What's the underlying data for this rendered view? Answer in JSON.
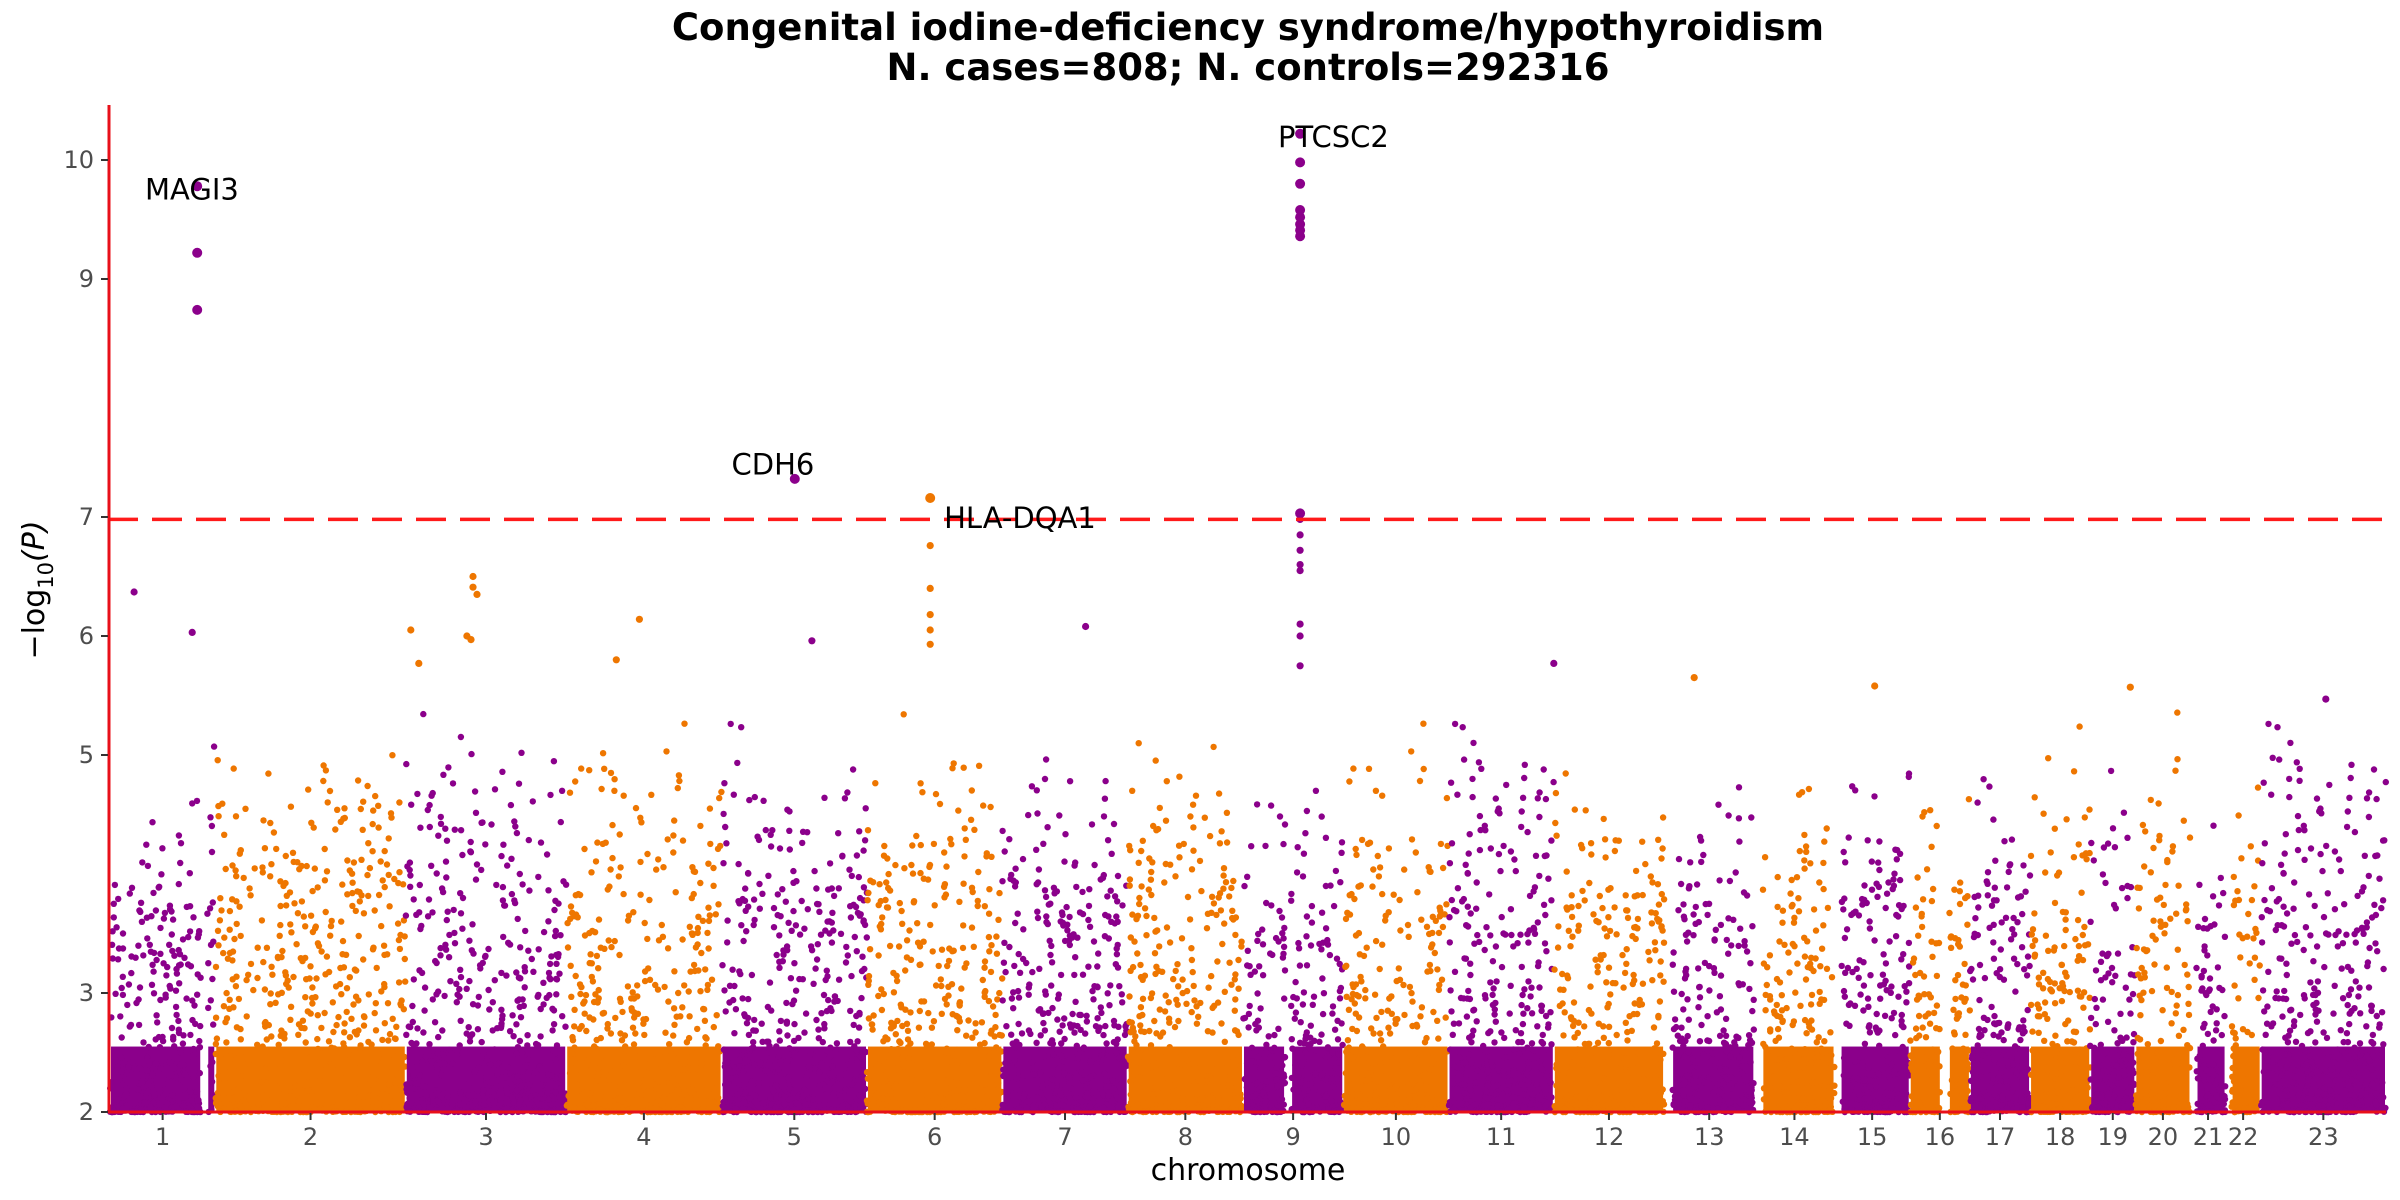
{
  "chart_data": {
    "type": "scatter",
    "title": "Congenital iodine-deficiency syndrome/hypothyroidism",
    "subtitle": "N. cases=808; N. controls=292316",
    "xlabel": "chromosome",
    "ylabel_prefix": "−log",
    "ylabel_sub": "10",
    "ylabel_suffix": "(P)",
    "ylim": [
      2,
      10.35
    ],
    "yticks": [
      "2",
      "3",
      "5",
      "6",
      "7",
      "9",
      "10"
    ],
    "grid": false,
    "threshold": 6.98,
    "threshold_color": "#ff1a1a",
    "axis_color": "#e8101a",
    "colors": [
      "#8b008b",
      "#ee7600"
    ],
    "chromosomes": [
      {
        "label": "1",
        "start": 0,
        "end": 1.05,
        "peak": 4.9,
        "gap": [
          0.91,
          0.97
        ]
      },
      {
        "label": "2",
        "start": 1.05,
        "end": 2.95,
        "peak": 5.3
      },
      {
        "label": "3",
        "start": 2.95,
        "end": 4.55,
        "peak": 5.3
      },
      {
        "label": "4",
        "start": 4.55,
        "end": 6.1,
        "peak": 5.2
      },
      {
        "label": "5",
        "start": 6.1,
        "end": 7.55,
        "peak": 5.3
      },
      {
        "label": "6",
        "start": 7.55,
        "end": 8.9,
        "peak": 5.3
      },
      {
        "label": "7",
        "start": 8.9,
        "end": 10.15,
        "peak": 5.2
      },
      {
        "label": "8",
        "start": 10.15,
        "end": 11.3,
        "peak": 5.4
      },
      {
        "label": "9",
        "start": 11.3,
        "end": 12.3,
        "peak": 5.0,
        "gap": [
          11.72,
          11.78
        ]
      },
      {
        "label": "10",
        "start": 12.3,
        "end": 13.35,
        "peak": 5.2
      },
      {
        "label": "11",
        "start": 13.35,
        "end": 14.4,
        "peak": 5.3
      },
      {
        "label": "12",
        "start": 14.4,
        "end": 15.5,
        "peak": 5.2
      },
      {
        "label": "13",
        "start": 15.5,
        "end": 16.4,
        "peak": 4.8,
        "gap": [
          15.5,
          15.58
        ]
      },
      {
        "label": "14",
        "start": 16.4,
        "end": 17.2,
        "peak": 5.1,
        "gap": [
          16.4,
          16.48
        ]
      },
      {
        "label": "15",
        "start": 17.2,
        "end": 17.95,
        "peak": 5.2,
        "gap": [
          17.2,
          17.26
        ]
      },
      {
        "label": "16",
        "start": 17.95,
        "end": 18.55,
        "peak": 4.9,
        "gap": [
          18.26,
          18.34
        ]
      },
      {
        "label": "17",
        "start": 18.55,
        "end": 19.15,
        "peak": 5.0
      },
      {
        "label": "18",
        "start": 19.15,
        "end": 19.75,
        "peak": 5.4
      },
      {
        "label": "19",
        "start": 19.75,
        "end": 20.2,
        "peak": 5.0
      },
      {
        "label": "20",
        "start": 20.2,
        "end": 20.75,
        "peak": 5.3
      },
      {
        "label": "21",
        "start": 20.75,
        "end": 21.1,
        "peak": 4.7,
        "gap": [
          20.75,
          20.81
        ]
      },
      {
        "label": "22",
        "start": 21.1,
        "end": 21.45,
        "peak": 5.0,
        "gap": [
          21.1,
          21.16
        ]
      },
      {
        "label": "23",
        "start": 21.45,
        "end": 22.7,
        "peak": 5.3
      }
    ],
    "hits": [
      {
        "x": 0.87,
        "y": 9.78,
        "chrom": 1
      },
      {
        "x": 0.87,
        "y": 9.22,
        "chrom": 1
      },
      {
        "x": 0.87,
        "y": 8.74,
        "chrom": 1
      },
      {
        "x": 0.82,
        "y": 6.03,
        "chrom": 1
      },
      {
        "x": 0.24,
        "y": 6.37,
        "chrom": 1
      },
      {
        "x": 6.83,
        "y": 7.32,
        "chrom": 5
      },
      {
        "x": 8.18,
        "y": 7.16,
        "chrom": 6
      },
      {
        "x": 8.18,
        "y": 6.76,
        "chrom": 6
      },
      {
        "x": 8.18,
        "y": 6.4,
        "chrom": 6
      },
      {
        "x": 8.18,
        "y": 6.18,
        "chrom": 6
      },
      {
        "x": 8.18,
        "y": 6.05,
        "chrom": 6
      },
      {
        "x": 8.18,
        "y": 5.93,
        "chrom": 6
      },
      {
        "x": 11.87,
        "y": 10.22,
        "chrom": 9
      },
      {
        "x": 11.87,
        "y": 9.98,
        "chrom": 9
      },
      {
        "x": 11.87,
        "y": 9.8,
        "chrom": 9
      },
      {
        "x": 11.87,
        "y": 9.58,
        "chrom": 9
      },
      {
        "x": 11.87,
        "y": 9.52,
        "chrom": 9
      },
      {
        "x": 11.87,
        "y": 9.46,
        "chrom": 9
      },
      {
        "x": 11.87,
        "y": 9.41,
        "chrom": 9
      },
      {
        "x": 11.87,
        "y": 9.36,
        "chrom": 9
      },
      {
        "x": 11.87,
        "y": 7.03,
        "chrom": 9
      },
      {
        "x": 11.87,
        "y": 6.98,
        "chrom": 9
      },
      {
        "x": 11.87,
        "y": 6.85,
        "chrom": 9
      },
      {
        "x": 11.87,
        "y": 6.72,
        "chrom": 9
      },
      {
        "x": 11.87,
        "y": 6.6,
        "chrom": 9
      },
      {
        "x": 11.87,
        "y": 6.55,
        "chrom": 9
      },
      {
        "x": 11.87,
        "y": 6.1,
        "chrom": 9
      },
      {
        "x": 11.87,
        "y": 6.0,
        "chrom": 9
      },
      {
        "x": 11.87,
        "y": 5.75,
        "chrom": 9
      },
      {
        "x": 3.62,
        "y": 6.5,
        "chrom": 2
      },
      {
        "x": 3.62,
        "y": 6.41,
        "chrom": 2
      },
      {
        "x": 3.66,
        "y": 6.35,
        "chrom": 2
      },
      {
        "x": 3.56,
        "y": 6.0,
        "chrom": 2
      },
      {
        "x": 3.6,
        "y": 5.97,
        "chrom": 2
      },
      {
        "x": 3.0,
        "y": 6.05,
        "chrom": 2
      },
      {
        "x": 3.08,
        "y": 5.77,
        "chrom": 2
      },
      {
        "x": 5.28,
        "y": 6.14,
        "chrom": 4
      },
      {
        "x": 5.05,
        "y": 5.8,
        "chrom": 4
      },
      {
        "x": 9.73,
        "y": 6.08,
        "chrom": 7
      },
      {
        "x": 7.0,
        "y": 5.96,
        "chrom": 5
      },
      {
        "x": 15.8,
        "y": 5.65,
        "chrom": 12
      },
      {
        "x": 14.4,
        "y": 5.77,
        "chrom": 11
      },
      {
        "x": 17.6,
        "y": 5.58,
        "chrom": 16
      },
      {
        "x": 20.15,
        "y": 5.57,
        "chrom": 18
      },
      {
        "x": 22.1,
        "y": 5.47,
        "chrom": 23
      }
    ],
    "annotations": [
      {
        "text": "MAGI3",
        "x": 0.0,
        "y": 9.76
      },
      {
        "text": "CDH6",
        "x": 5.85,
        "y": 7.45
      },
      {
        "text": "HLA-DQA1",
        "x": 7.97,
        "y": 7.0
      },
      {
        "text": "PTCSC2",
        "x": 11.3,
        "y": 10.2
      }
    ]
  }
}
